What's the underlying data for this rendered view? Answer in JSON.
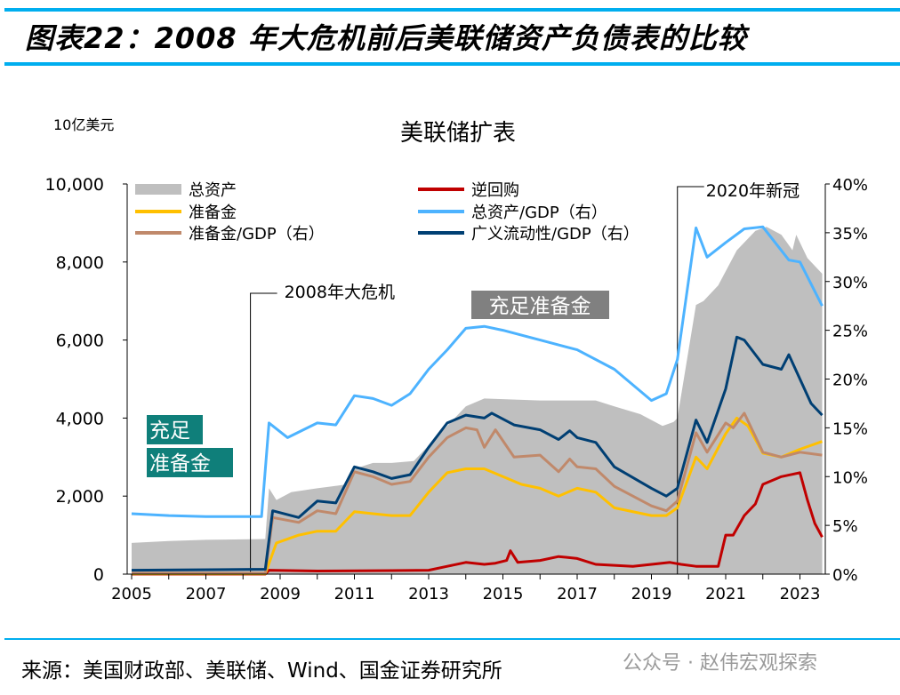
{
  "figure_title": "图表22：2008 年大危机前后美联储资产负债表的比较",
  "source": "来源：美国财政部、美联储、Wind、国金证券研究所",
  "watermark": "公众号 · 赵伟宏观探索",
  "chart_data": {
    "type": "line",
    "title": "美联储扩表",
    "ylabel": "10亿美元",
    "ylim": [
      0,
      10000
    ],
    "y2lim": [
      0,
      40
    ],
    "xlim": [
      2005,
      2023.7
    ],
    "x_ticks": [
      "2005",
      "2007",
      "2009",
      "2011",
      "2013",
      "2015",
      "2017",
      "2019",
      "2021",
      "2023"
    ],
    "y_ticks": [
      "0",
      "2,000",
      "4,000",
      "6,000",
      "8,000",
      "10,000"
    ],
    "y2_ticks": [
      "0%",
      "5%",
      "10%",
      "15%",
      "20%",
      "25%",
      "30%",
      "35%",
      "40%"
    ],
    "legend_placement": "top",
    "annotations": [
      {
        "label": "2008年大危机",
        "x": 2008.2
      },
      {
        "label": "2020年新冠",
        "x": 2019.7
      },
      {
        "label": "充足准备金",
        "color": "#808080"
      },
      {
        "label_lines": [
          "充足",
          "准备金"
        ],
        "color": "#0f7f7a"
      }
    ],
    "series": [
      {
        "name": "总资产",
        "kind": "area",
        "axis": "left",
        "color": "#bfbfbf",
        "x": [
          2005,
          2006,
          2007,
          2008.6,
          2008.7,
          2008.9,
          2009.3,
          2010,
          2010.8,
          2011,
          2011.5,
          2012,
          2012.6,
          2013,
          2013.5,
          2014,
          2014.5,
          2016,
          2017.5,
          2018,
          2018.7,
          2019.3,
          2019.6,
          2019.7,
          2020.2,
          2020.4,
          2020.8,
          2021.3,
          2021.8,
          2022.1,
          2022.5,
          2022.8,
          2022.9,
          2023.2,
          2023.6
        ],
        "values": [
          800,
          850,
          880,
          900,
          2200,
          1900,
          2100,
          2200,
          2300,
          2700,
          2850,
          2850,
          2900,
          3300,
          3800,
          4300,
          4500,
          4450,
          4450,
          4300,
          4100,
          3800,
          3900,
          4000,
          6900,
          7000,
          7400,
          8300,
          8800,
          8900,
          8700,
          8300,
          8700,
          8100,
          7700
        ]
      },
      {
        "name": "逆回购",
        "kind": "line",
        "axis": "left",
        "color": "#c00000",
        "x": [
          2005,
          2008.6,
          2008.7,
          2010,
          2012,
          2013,
          2013.5,
          2014,
          2014.5,
          2014.8,
          2015.1,
          2015.2,
          2015.4,
          2016,
          2016.5,
          2017,
          2017.5,
          2018.5,
          2019.5,
          2019.8,
          2020.2,
          2020.8,
          2021,
          2021.2,
          2021.5,
          2021.8,
          2022,
          2022.5,
          2023,
          2023.2,
          2023.4,
          2023.6
        ],
        "values": [
          0,
          0,
          100,
          80,
          90,
          100,
          200,
          300,
          250,
          280,
          350,
          600,
          300,
          350,
          450,
          400,
          250,
          200,
          300,
          250,
          200,
          200,
          1000,
          1000,
          1500,
          1800,
          2300,
          2500,
          2600,
          1900,
          1300,
          950
        ]
      },
      {
        "name": "准备金",
        "kind": "line",
        "axis": "left",
        "color": "#ffc000",
        "x": [
          2005,
          2008.6,
          2008.9,
          2009.5,
          2010,
          2010.5,
          2011,
          2011.5,
          2012,
          2012.5,
          2013,
          2013.5,
          2014,
          2014.5,
          2015,
          2015.5,
          2016,
          2016.5,
          2017,
          2017.5,
          2018,
          2019,
          2019.4,
          2019.7,
          2020.2,
          2020.5,
          2021,
          2021.3,
          2021.6,
          2022,
          2022.5,
          2023,
          2023.6
        ],
        "values": [
          10,
          10,
          800,
          1000,
          1100,
          1100,
          1600,
          1550,
          1500,
          1500,
          2100,
          2600,
          2700,
          2700,
          2500,
          2300,
          2200,
          2000,
          2200,
          2100,
          1700,
          1500,
          1500,
          1700,
          3000,
          2700,
          3600,
          4000,
          3800,
          3100,
          3000,
          3200,
          3400
        ]
      },
      {
        "name": "总资产/GDP（右）",
        "kind": "line",
        "axis": "right",
        "color": "#4db3ff",
        "x": [
          2005,
          2006,
          2007,
          2008.5,
          2008.7,
          2009.2,
          2010,
          2010.5,
          2011,
          2011.5,
          2012,
          2012.5,
          2013,
          2013.5,
          2014,
          2014.5,
          2015,
          2016,
          2017,
          2018,
          2019,
          2019.4,
          2019.7,
          2020.2,
          2020.5,
          2021,
          2021.5,
          2022,
          2022.7,
          2023,
          2023.6
        ],
        "values": [
          6.2,
          6.0,
          5.9,
          5.9,
          15.5,
          14,
          15.5,
          15.3,
          18.3,
          18,
          17.3,
          18.5,
          21,
          23,
          25.2,
          25.4,
          25,
          24,
          23,
          21,
          17.8,
          18.5,
          22,
          35.5,
          32.5,
          34,
          35.4,
          35.6,
          32.2,
          32,
          27.5
        ]
      },
      {
        "name": "准备金/GDP（右）",
        "kind": "line",
        "axis": "right",
        "color": "#c0896b",
        "x": [
          2005,
          2008.6,
          2008.8,
          2009.5,
          2010,
          2010.5,
          2011,
          2011.5,
          2012,
          2012.5,
          2013,
          2013.5,
          2014,
          2014.3,
          2014.5,
          2014.8,
          2015.3,
          2016,
          2016.5,
          2016.8,
          2017,
          2017.5,
          2018,
          2019,
          2019.4,
          2019.7,
          2020.2,
          2020.5,
          2021,
          2021.2,
          2021.5,
          2022,
          2022.5,
          2023,
          2023.6
        ],
        "values": [
          0.1,
          0.1,
          5.8,
          5.3,
          6.5,
          6.2,
          10.5,
          10,
          9.2,
          9.5,
          12,
          14,
          15,
          14.8,
          13,
          14.8,
          12,
          12.2,
          10.5,
          11.8,
          11,
          10.8,
          9,
          7,
          6.5,
          7.5,
          14.5,
          12.5,
          15.5,
          15,
          16.5,
          12.5,
          12,
          12.5,
          12.2
        ]
      },
      {
        "name": "广义流动性/GDP（右）",
        "kind": "line",
        "axis": "right",
        "color": "#003f73",
        "x": [
          2005,
          2008.6,
          2008.8,
          2009.5,
          2010,
          2010.5,
          2011,
          2011.5,
          2012,
          2012.5,
          2013,
          2013.5,
          2014,
          2014.5,
          2014.7,
          2015.3,
          2016,
          2016.5,
          2016.8,
          2017,
          2017.5,
          2018,
          2019,
          2019.4,
          2019.7,
          2020.2,
          2020.5,
          2021,
          2021.3,
          2021.5,
          2022,
          2022.5,
          2022.7,
          2023.3,
          2023.6
        ],
        "values": [
          0.4,
          0.5,
          6.5,
          5.8,
          7.5,
          7.3,
          11,
          10.5,
          9.8,
          10.2,
          13,
          15.5,
          16.3,
          16,
          16.5,
          15.3,
          14.8,
          13.8,
          14.7,
          14,
          13.5,
          11,
          8.8,
          8,
          8.8,
          15.8,
          13.5,
          19,
          24.3,
          24,
          21.5,
          21,
          22.5,
          17.5,
          16.3
        ]
      }
    ]
  }
}
